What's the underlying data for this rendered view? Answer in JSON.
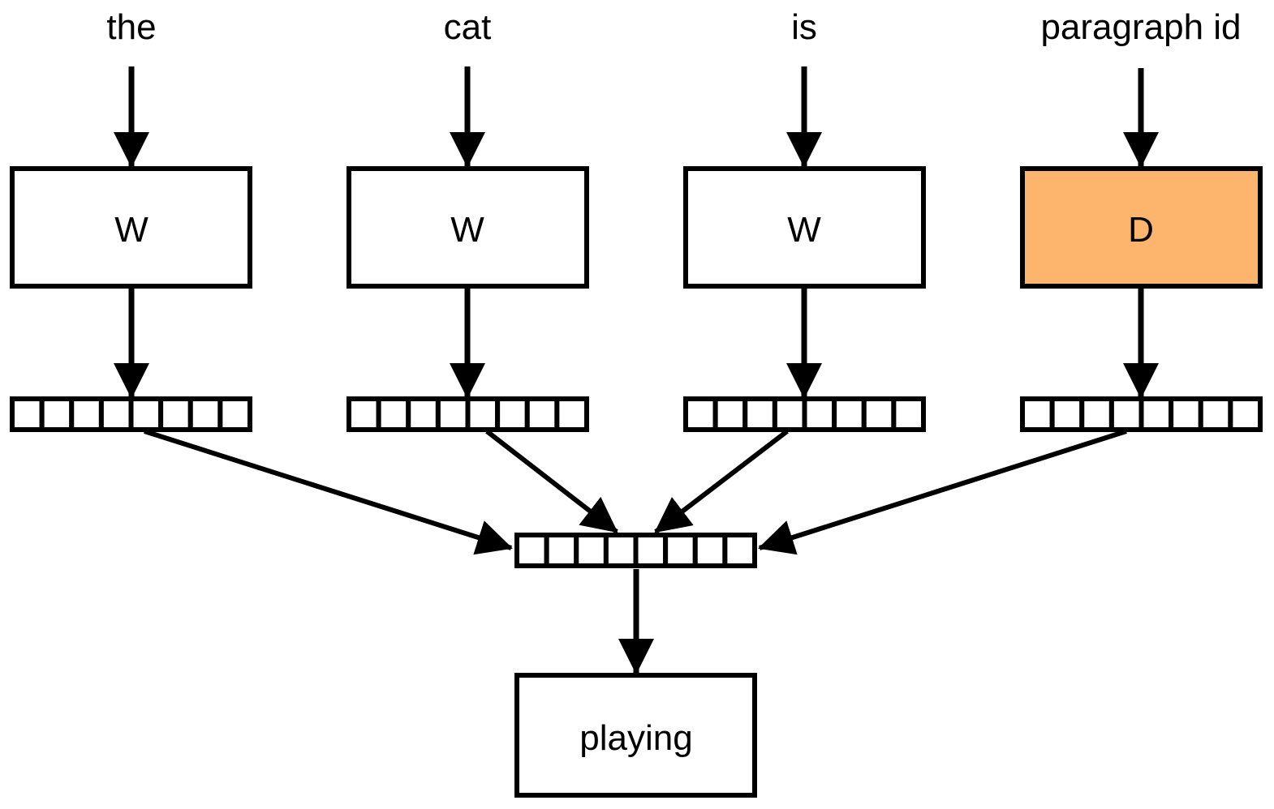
{
  "inputs": [
    {
      "word": "the",
      "matrix": "W"
    },
    {
      "word": "cat",
      "matrix": "W"
    },
    {
      "word": "is",
      "matrix": "W"
    },
    {
      "word": "paragraph id",
      "matrix": "D"
    }
  ],
  "output": {
    "label": "playing"
  },
  "vector_cells": 8,
  "colors": {
    "stroke": "#000000",
    "box_fill": "#ffffff",
    "paragraph_box_fill": "#fdb46c"
  }
}
